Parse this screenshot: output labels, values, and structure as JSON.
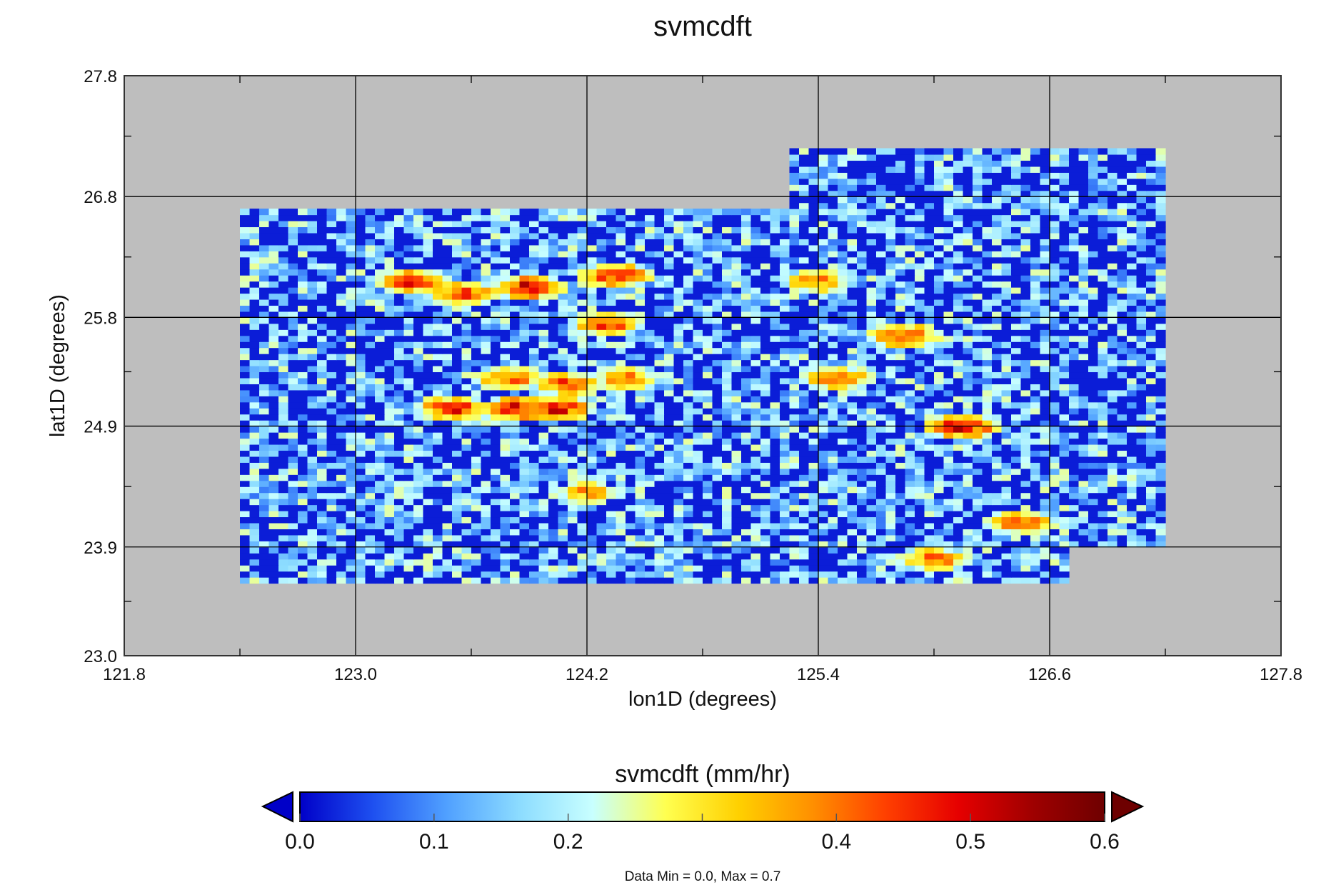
{
  "chart_data": {
    "type": "heatmap",
    "title": "svmcdft",
    "xlabel": "lon1D (degrees)",
    "ylabel": "lat1D (degrees)",
    "xlim": [
      121.8,
      127.8
    ],
    "ylim": [
      23.0,
      27.8
    ],
    "xticks": [
      "121.8",
      "123.0",
      "124.2",
      "125.4",
      "126.6",
      "127.8"
    ],
    "yticks": [
      "23.0",
      "23.9",
      "24.9",
      "25.8",
      "26.8",
      "27.8"
    ],
    "grid": true,
    "background_color": "#bebebe",
    "coverage": [
      {
        "lon": [
          122.4,
          125.26
        ],
        "lat": [
          23.6,
          26.71
        ]
      },
      {
        "lon": [
          125.26,
          127.2
        ],
        "lat": [
          23.9,
          27.2
        ]
      },
      {
        "lon": [
          125.26,
          126.68
        ],
        "lat": [
          23.6,
          23.9
        ]
      }
    ],
    "hotspots": [
      {
        "lon": 123.3,
        "lat": 26.1,
        "value": 0.5
      },
      {
        "lon": 123.55,
        "lat": 26.0,
        "value": 0.48
      },
      {
        "lon": 123.9,
        "lat": 26.05,
        "value": 0.55
      },
      {
        "lon": 123.8,
        "lat": 25.3,
        "value": 0.45
      },
      {
        "lon": 124.1,
        "lat": 25.25,
        "value": 0.47
      },
      {
        "lon": 124.4,
        "lat": 25.3,
        "value": 0.42
      },
      {
        "lon": 123.5,
        "lat": 25.05,
        "value": 0.5
      },
      {
        "lon": 123.85,
        "lat": 25.05,
        "value": 0.55
      },
      {
        "lon": 124.05,
        "lat": 25.05,
        "value": 0.52
      },
      {
        "lon": 124.35,
        "lat": 26.15,
        "value": 0.52
      },
      {
        "lon": 124.3,
        "lat": 25.75,
        "value": 0.48
      },
      {
        "lon": 125.85,
        "lat": 25.65,
        "value": 0.5
      },
      {
        "lon": 126.15,
        "lat": 24.9,
        "value": 0.55
      },
      {
        "lon": 125.5,
        "lat": 25.3,
        "value": 0.45
      },
      {
        "lon": 125.4,
        "lat": 26.1,
        "value": 0.42
      },
      {
        "lon": 126.0,
        "lat": 23.8,
        "value": 0.45
      },
      {
        "lon": 124.2,
        "lat": 24.35,
        "value": 0.4
      },
      {
        "lon": 126.45,
        "lat": 24.1,
        "value": 0.45
      }
    ],
    "colorbar": {
      "title": "svmcdft (mm/hr)",
      "range": [
        0.0,
        0.6
      ],
      "ticks": [
        "0.0",
        "0.1",
        "0.2",
        "0.3",
        "0.4",
        "0.5",
        "0.6"
      ],
      "tick_labels": [
        "0.0",
        "0.1",
        "0.2",
        "",
        "0.4",
        "0.5",
        "0.6"
      ],
      "colors": [
        "#0000c8",
        "#1e50f0",
        "#50a0ff",
        "#8cdcff",
        "#c8ffff",
        "#ffff50",
        "#ffd000",
        "#ff9000",
        "#ff4000",
        "#e60000",
        "#a00000",
        "#6e0000"
      ],
      "extend": "both"
    },
    "note": "Data Min = 0.0, Max = 0.7"
  }
}
